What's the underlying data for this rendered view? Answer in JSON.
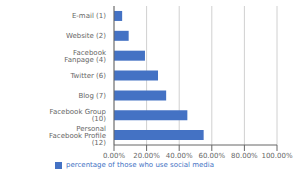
{
  "chart_data": {
    "type": "bar",
    "orientation": "horizontal",
    "categories": [
      "Personal Facebook Profile (12)",
      "Facebook Group (10)",
      "Blog (7)",
      "Twitter (6)",
      "Facebook Fanpage (4)",
      "Website (2)",
      "E-mail (1)"
    ],
    "series": [
      {
        "name": "percentage of those who use social media",
        "color": "#4472C4",
        "values": [
          0.55,
          0.45,
          0.32,
          0.27,
          0.19,
          0.09,
          0.05
        ]
      }
    ],
    "xlim": [
      0,
      1.0
    ],
    "xticks": [
      {
        "value": 0.0,
        "label": "0.00%"
      },
      {
        "value": 0.2,
        "label": "20.00%"
      },
      {
        "value": 0.4,
        "label": "40.00%"
      },
      {
        "value": 0.6,
        "label": "60.00%"
      },
      {
        "value": 0.8,
        "label": "80.00%"
      },
      {
        "value": 1.0,
        "label": "100.00%"
      }
    ],
    "grid": true,
    "legend": "bottom"
  }
}
